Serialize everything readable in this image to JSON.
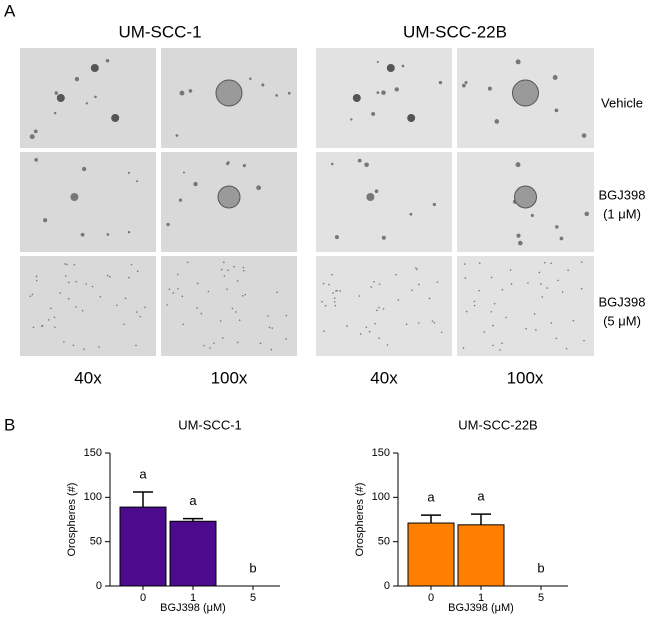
{
  "panel_a": {
    "label": "A",
    "column_groups": [
      "UM-SCC-1",
      "UM-SCC-22B"
    ],
    "row_labels": [
      [
        "Vehicle"
      ],
      [
        "BGJ398",
        "(1 μM)"
      ],
      [
        "BGJ398",
        "(5 μM)"
      ]
    ],
    "magnifications": [
      "40x",
      "100x",
      "40x",
      "100x"
    ]
  },
  "panel_b_label": "B",
  "chart_data": [
    {
      "type": "bar",
      "title": "UM-SCC-1",
      "x_label": "BGJ398 (μM)",
      "y_label": "Orospheres (#)",
      "categories": [
        "0",
        "1",
        "5"
      ],
      "values": [
        89,
        73,
        0
      ],
      "errors": [
        17,
        3,
        0
      ],
      "annotations": [
        "a",
        "a",
        "b"
      ],
      "color": "#4b0b8c",
      "ylim": [
        0,
        150
      ],
      "yticks": [
        0,
        50,
        100,
        150
      ]
    },
    {
      "type": "bar",
      "title": "UM-SCC-22B",
      "x_label": "BGJ398 (μM)",
      "y_label": "Orospheres (#)",
      "categories": [
        "0",
        "1",
        "5"
      ],
      "values": [
        71,
        69,
        0
      ],
      "errors": [
        9,
        12,
        0
      ],
      "annotations": [
        "a",
        "a",
        "b"
      ],
      "color": "#ff8000",
      "ylim": [
        0,
        150
      ],
      "yticks": [
        0,
        50,
        100,
        150
      ]
    }
  ]
}
